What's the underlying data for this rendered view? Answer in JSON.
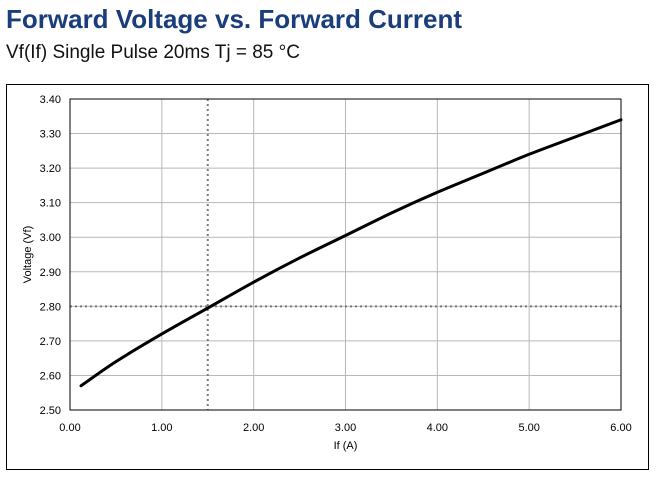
{
  "header": {
    "title": "Forward Voltage vs. Forward Current",
    "subtitle": "Vf(If) Single Pulse 20ms Tj = 85 °C"
  },
  "colors": {
    "title": "#1a3d7c",
    "grid": "#b8b8b8",
    "curve": "#000000",
    "marker": "#7a7a7a"
  },
  "chart_data": {
    "type": "line",
    "title": "Forward Voltage vs. Forward Current",
    "subtitle": "Vf(If) Single Pulse 20ms Tj = 85 °C",
    "xlabel": "If (A)",
    "ylabel": "Voltage (Vf)",
    "xlim": [
      0,
      6
    ],
    "ylim": [
      2.5,
      3.4
    ],
    "xticks": [
      "0.00",
      "1.00",
      "2.00",
      "3.00",
      "4.00",
      "5.00",
      "6.00"
    ],
    "yticks": [
      "2.50",
      "2.60",
      "2.70",
      "2.80",
      "2.90",
      "3.00",
      "3.10",
      "3.20",
      "3.30",
      "3.40"
    ],
    "grid": true,
    "series": [
      {
        "x": [
          0.12,
          0.5,
          1.0,
          1.5,
          2.0,
          2.5,
          3.0,
          3.5,
          4.0,
          4.5,
          5.0,
          5.5,
          6.0
        ],
        "y": [
          2.57,
          2.64,
          2.72,
          2.795,
          2.87,
          2.94,
          3.005,
          3.07,
          3.13,
          3.185,
          3.24,
          3.29,
          3.34
        ]
      }
    ],
    "reference_lines": {
      "x": 1.5,
      "y": 2.8,
      "style": "dotted"
    }
  }
}
